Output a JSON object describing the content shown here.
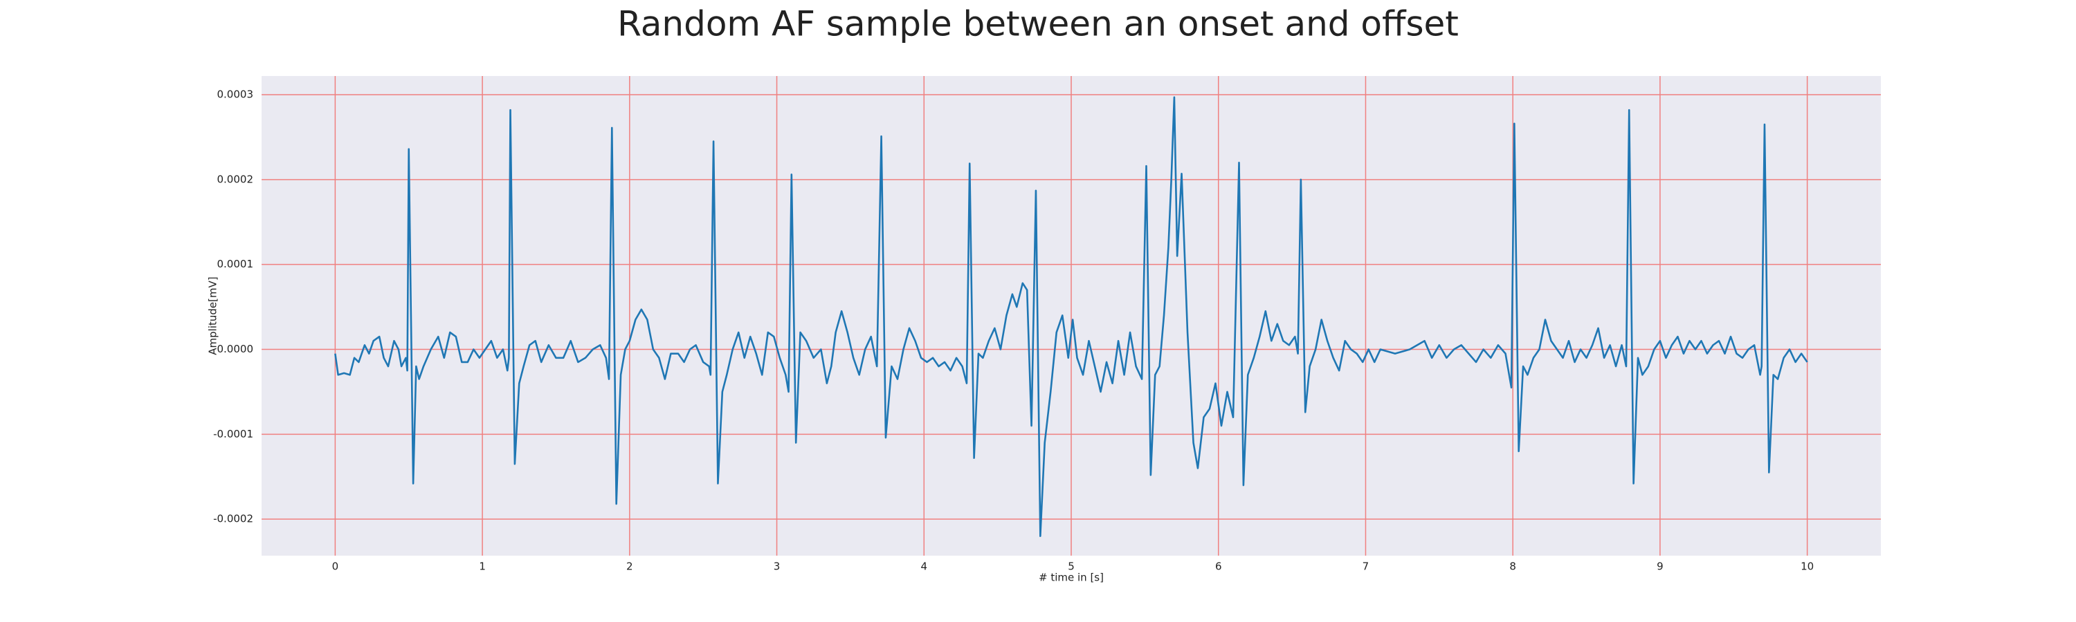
{
  "chart_data": {
    "type": "line",
    "title": "Random AF sample between an onset and offset",
    "xlabel": "# time in [s]",
    "ylabel": "Amplitude[mV]",
    "color": "#1f77b4",
    "grid": true,
    "xlim": [
      -0.5,
      10.5
    ],
    "ylim": [
      -0.000243,
      0.000322
    ],
    "xticks": [
      0,
      1,
      2,
      3,
      4,
      5,
      6,
      7,
      8,
      9,
      10
    ],
    "yticks": [
      {
        "value": -0.0002,
        "label": "-0.0002"
      },
      -0.0001,
      {
        "value": 0,
        "label": "0.0000"
      },
      0.0001,
      0.0002,
      0.0003
    ],
    "x": [
      0,
      0.02,
      0.06,
      0.1,
      0.13,
      0.16,
      0.2,
      0.23,
      0.26,
      0.3,
      0.33,
      0.36,
      0.4,
      0.43,
      0.45,
      0.48,
      0.49,
      0.5,
      0.53,
      0.55,
      0.57,
      0.6,
      0.65,
      0.7,
      0.74,
      0.78,
      0.82,
      0.86,
      0.9,
      0.94,
      0.98,
      1.02,
      1.06,
      1.1,
      1.14,
      1.17,
      1.18,
      1.19,
      1.22,
      1.25,
      1.28,
      1.32,
      1.36,
      1.4,
      1.45,
      1.5,
      1.55,
      1.6,
      1.65,
      1.7,
      1.75,
      1.8,
      1.84,
      1.86,
      1.88,
      1.91,
      1.94,
      1.97,
      2.0,
      2.04,
      2.08,
      2.12,
      2.16,
      2.2,
      2.24,
      2.28,
      2.33,
      2.37,
      2.41,
      2.45,
      2.5,
      2.54,
      2.55,
      2.57,
      2.6,
      2.63,
      2.66,
      2.7,
      2.74,
      2.78,
      2.82,
      2.86,
      2.9,
      2.94,
      2.98,
      3.02,
      3.06,
      3.08,
      3.1,
      3.13,
      3.16,
      3.2,
      3.25,
      3.3,
      3.34,
      3.37,
      3.4,
      3.44,
      3.48,
      3.52,
      3.56,
      3.6,
      3.64,
      3.68,
      3.71,
      3.74,
      3.78,
      3.82,
      3.86,
      3.9,
      3.94,
      3.98,
      4.02,
      4.06,
      4.1,
      4.14,
      4.18,
      4.22,
      4.26,
      4.29,
      4.31,
      4.34,
      4.37,
      4.4,
      4.44,
      4.48,
      4.52,
      4.56,
      4.6,
      4.63,
      4.67,
      4.7,
      4.73,
      4.76,
      4.79,
      4.82,
      4.86,
      4.9,
      4.94,
      4.98,
      5.01,
      5.04,
      5.08,
      5.12,
      5.16,
      5.2,
      5.24,
      5.28,
      5.32,
      5.36,
      5.4,
      5.44,
      5.48,
      5.51,
      5.54,
      5.57,
      5.6,
      5.63,
      5.66,
      5.68,
      5.7,
      5.72,
      5.75,
      5.79,
      5.83,
      5.86,
      5.9,
      5.94,
      5.98,
      6.02,
      6.06,
      6.1,
      6.14,
      6.17,
      6.2,
      6.24,
      6.28,
      6.32,
      6.36,
      6.4,
      6.44,
      6.48,
      6.52,
      6.54,
      6.56,
      6.59,
      6.62,
      6.66,
      6.7,
      6.74,
      6.78,
      6.82,
      6.86,
      6.9,
      6.94,
      6.98,
      7.02,
      7.06,
      7.1,
      7.2,
      7.3,
      7.4,
      7.45,
      7.5,
      7.55,
      7.6,
      7.65,
      7.7,
      7.75,
      7.8,
      7.85,
      7.9,
      7.95,
      7.99,
      8.01,
      8.04,
      8.07,
      8.1,
      8.14,
      8.18,
      8.22,
      8.26,
      8.3,
      8.34,
      8.38,
      8.42,
      8.46,
      8.5,
      8.54,
      8.58,
      8.62,
      8.66,
      8.7,
      8.74,
      8.77,
      8.79,
      8.82,
      8.85,
      8.88,
      8.92,
      8.96,
      9.0,
      9.04,
      9.08,
      9.12,
      9.16,
      9.2,
      9.24,
      9.28,
      9.32,
      9.36,
      9.4,
      9.44,
      9.48,
      9.52,
      9.56,
      9.6,
      9.64,
      9.68,
      9.69,
      9.71,
      9.74,
      9.77,
      9.8,
      9.84,
      9.88,
      9.92,
      9.96,
      10.0
    ],
    "values": [
      -5e-06,
      -3e-05,
      -2.8e-05,
      -3e-05,
      -1e-05,
      -1.5e-05,
      5e-06,
      -5e-06,
      1e-05,
      1.5e-05,
      -1e-05,
      -2e-05,
      1e-05,
      0,
      -2e-05,
      -1e-05,
      -2.5e-05,
      0.000236,
      -0.000158,
      -2e-05,
      -3.5e-05,
      -2e-05,
      0,
      1.5e-05,
      -1e-05,
      2e-05,
      1.5e-05,
      -1.5e-05,
      -1.5e-05,
      0,
      -1e-05,
      0,
      1e-05,
      -1e-05,
      0,
      -2.5e-05,
      -1e-05,
      0.000282,
      -0.000135,
      -4e-05,
      -2e-05,
      5e-06,
      1e-05,
      -1.5e-05,
      5e-06,
      -1e-05,
      -1e-05,
      1e-05,
      -1.5e-05,
      -1e-05,
      0,
      5e-06,
      -1e-05,
      -3.5e-05,
      0.000261,
      -0.000182,
      -3e-05,
      0,
      1e-05,
      3.5e-05,
      4.7e-05,
      3.5e-05,
      0,
      -1e-05,
      -3.5e-05,
      -5e-06,
      -5e-06,
      -1.5e-05,
      0,
      5e-06,
      -1.5e-05,
      -2e-05,
      -3e-05,
      0.000245,
      -0.000158,
      -5e-05,
      -3e-05,
      0,
      2e-05,
      -1e-05,
      1.5e-05,
      -5e-06,
      -3e-05,
      2e-05,
      1.5e-05,
      -1e-05,
      -3e-05,
      -5e-05,
      0.000206,
      -0.00011,
      2e-05,
      1e-05,
      -1e-05,
      0,
      -4e-05,
      -2e-05,
      2e-05,
      4.5e-05,
      2e-05,
      -1e-05,
      -3e-05,
      0,
      1.5e-05,
      -2e-05,
      0.000251,
      -0.000104,
      -2e-05,
      -3.5e-05,
      0,
      2.5e-05,
      1e-05,
      -1e-05,
      -1.5e-05,
      -1e-05,
      -2e-05,
      -1.5e-05,
      -2.5e-05,
      -1e-05,
      -2e-05,
      -4e-05,
      0.000219,
      -0.000128,
      -5e-06,
      -1e-05,
      1e-05,
      2.5e-05,
      0,
      4e-05,
      6.5e-05,
      5e-05,
      7.8e-05,
      7e-05,
      -9e-05,
      0.000187,
      -0.00022,
      -0.00011,
      -5e-05,
      2e-05,
      4e-05,
      -1e-05,
      3.5e-05,
      -1e-05,
      -3e-05,
      1e-05,
      -2e-05,
      -5e-05,
      -1.5e-05,
      -4e-05,
      1e-05,
      -3e-05,
      2e-05,
      -2e-05,
      -3.5e-05,
      0.000216,
      -0.000148,
      -3e-05,
      -2e-05,
      4e-05,
      0.00012,
      0.0002,
      0.000297,
      0.00011,
      0.000207,
      2e-05,
      -0.00011,
      -0.00014,
      -8e-05,
      -7e-05,
      -4e-05,
      -9e-05,
      -5e-05,
      -8e-05,
      0.00022,
      -0.00016,
      -3e-05,
      -1e-05,
      1.5e-05,
      4.5e-05,
      1e-05,
      3e-05,
      1e-05,
      5e-06,
      1.5e-05,
      -5e-06,
      0.0002,
      -7.4e-05,
      -2e-05,
      0,
      3.5e-05,
      1e-05,
      -1e-05,
      -2.5e-05,
      1e-05,
      0,
      -5e-06,
      -1.5e-05,
      0,
      -1.5e-05,
      0,
      -5e-06,
      0,
      1e-05,
      -1e-05,
      5e-06,
      -1e-05,
      0,
      5e-06,
      -5e-06,
      -1.5e-05,
      0,
      -1e-05,
      5e-06,
      -5e-06,
      -4.5e-05,
      0.000266,
      -0.00012,
      -2e-05,
      -3e-05,
      -1e-05,
      0,
      3.5e-05,
      1e-05,
      0,
      -1e-05,
      1e-05,
      -1.5e-05,
      0,
      -1e-05,
      5e-06,
      2.5e-05,
      -1e-05,
      5e-06,
      -2e-05,
      5e-06,
      -2e-05,
      0.000282,
      -0.000158,
      -1e-05,
      -3e-05,
      -2e-05,
      0,
      1e-05,
      -1e-05,
      5e-06,
      1.5e-05,
      -5e-06,
      1e-05,
      0,
      1e-05,
      -5e-06,
      5e-06,
      1e-05,
      -5e-06,
      1.5e-05,
      -5e-06,
      -1e-05,
      0,
      5e-06,
      -3e-05,
      -2e-05,
      0.000265,
      -0.000145,
      -3e-05,
      -3.5e-05,
      -1e-05,
      0,
      -1.5e-05,
      -5e-06,
      -1.5e-05
    ]
  }
}
